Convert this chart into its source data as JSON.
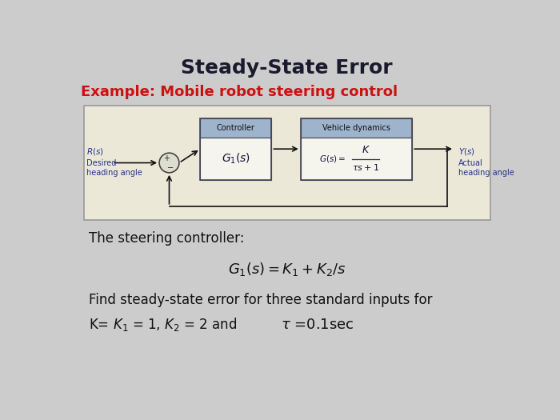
{
  "title": "Steady-State Error",
  "title_fontsize": 18,
  "title_fontweight": "bold",
  "title_color": "#1a1a2e",
  "subtitle": "Example: Mobile robot steering control",
  "subtitle_fontsize": 13,
  "subtitle_color": "#cc1111",
  "subtitle_fontweight": "bold",
  "bg_color": "#cccccc",
  "diagram_bg": "#ebe8d8",
  "box_header_fill": "#9eb3cc",
  "box_body_fill": "#f5f5ee",
  "box_edge": "#444455",
  "controller_label": "Controller",
  "controller_tf": "$G_1(s)$",
  "vehicle_label": "Vehicle dynamics",
  "text_color": "#111111",
  "label_color": "#223388",
  "arrow_color": "#111111",
  "line_color": "#111111",
  "sumjunction_color": "#ddddd0",
  "text_steering": "The steering controller:",
  "text_find": "Find steady-state error for three standard inputs for"
}
